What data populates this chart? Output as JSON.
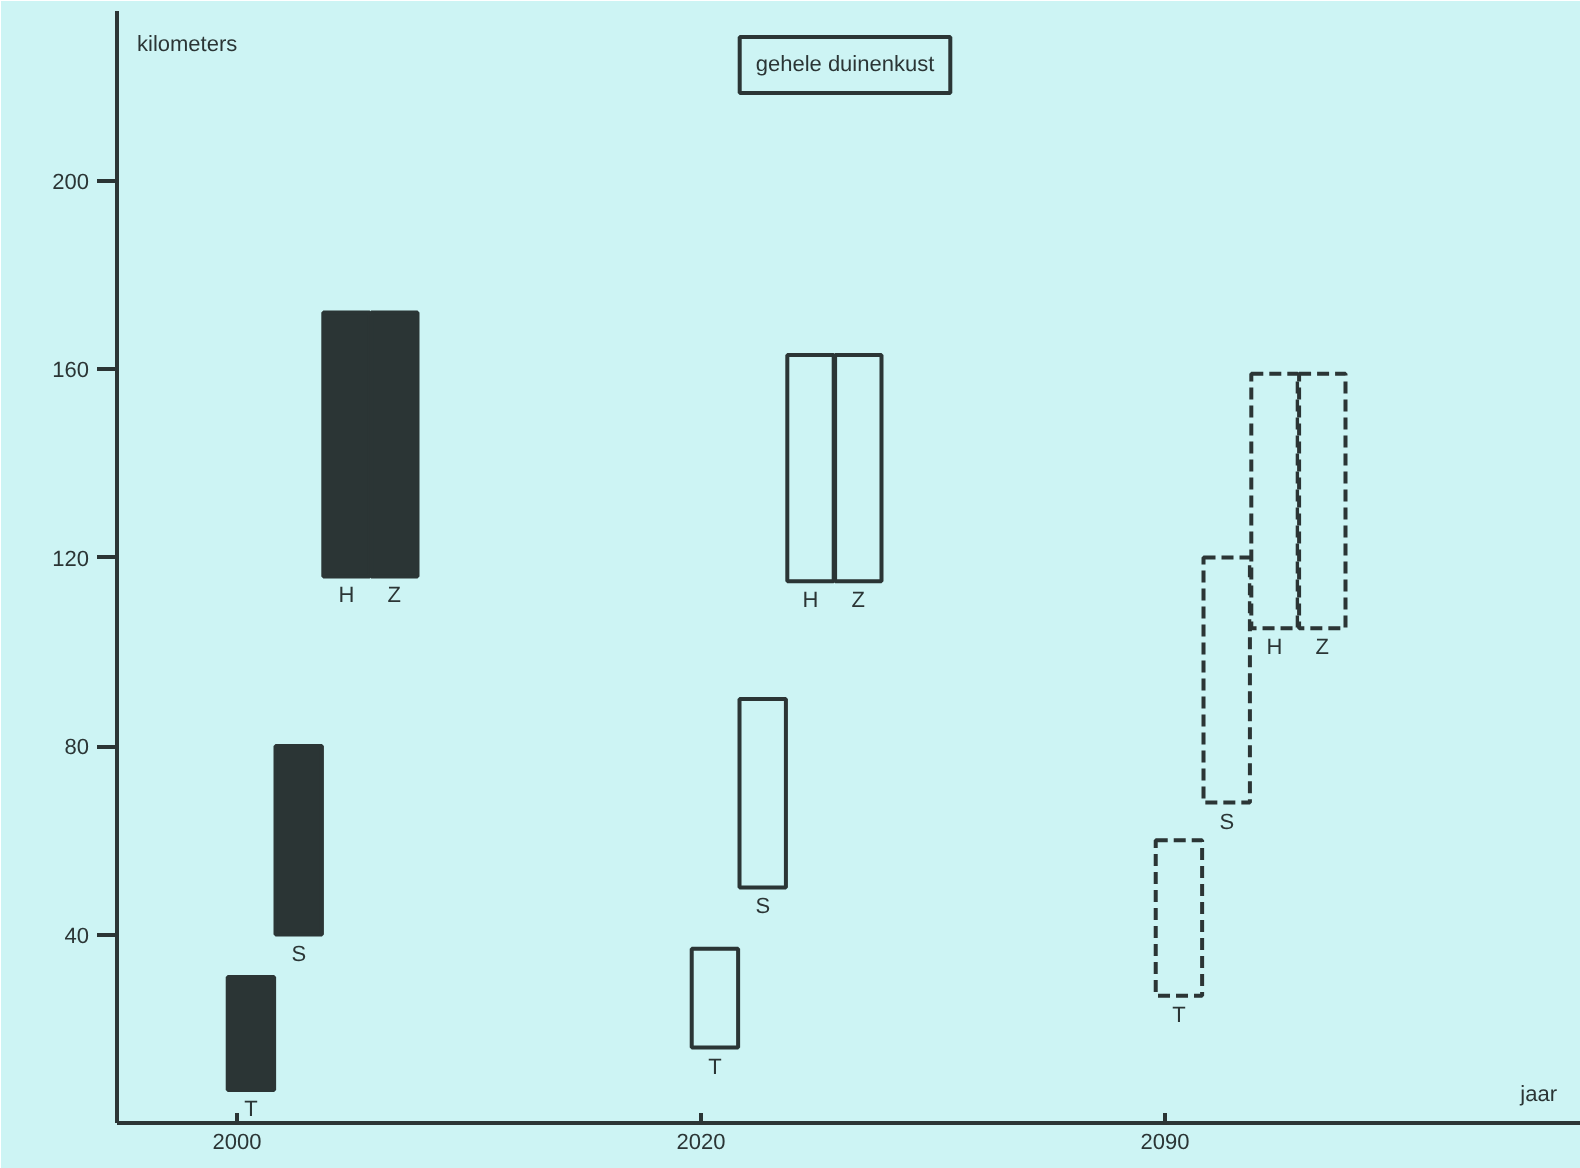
{
  "chart_data": {
    "type": "bar",
    "title": "gehele duinenkust",
    "ylabel": "kilometers",
    "xlabel": "jaar",
    "categories": [
      "2000",
      "2020",
      "2090"
    ],
    "ylim": [
      0,
      236
    ],
    "yticks": [
      40,
      80,
      120,
      160,
      200
    ],
    "grid": false,
    "series": [
      {
        "name": "T",
        "color": "#2b3535",
        "colors": [
          "#2b3535",
          "#cdf4f4",
          "#cdf4f4"
        ],
        "line_style": [
          "solid",
          "solid",
          "dashed"
        ],
        "base": [
          7,
          16,
          27
        ],
        "values": [
          24,
          21,
          33
        ]
      },
      {
        "name": "S",
        "color": "#2b3535",
        "colors": [
          "#2b3535",
          "#cdf4f4",
          "#cdf4f4"
        ],
        "line_style": [
          "solid",
          "solid",
          "dashed"
        ],
        "base": [
          40,
          50,
          68
        ],
        "values": [
          40,
          40,
          52
        ]
      },
      {
        "name": "H",
        "color": "#2b3535",
        "colors": [
          "#2b3535",
          "#cdf4f4",
          "#cdf4f4"
        ],
        "line_style": [
          "solid",
          "solid",
          "dashed"
        ],
        "base": [
          116,
          115,
          105
        ],
        "values": [
          56,
          48,
          54
        ]
      },
      {
        "name": "Z",
        "color": "#2b3535",
        "colors": [
          "#2b3535",
          "#cdf4f4",
          "#cdf4f4"
        ],
        "line_style": [
          "solid",
          "solid",
          "dashed"
        ],
        "base": [
          116,
          115,
          105
        ],
        "values": [
          56,
          48,
          54
        ]
      }
    ]
  }
}
